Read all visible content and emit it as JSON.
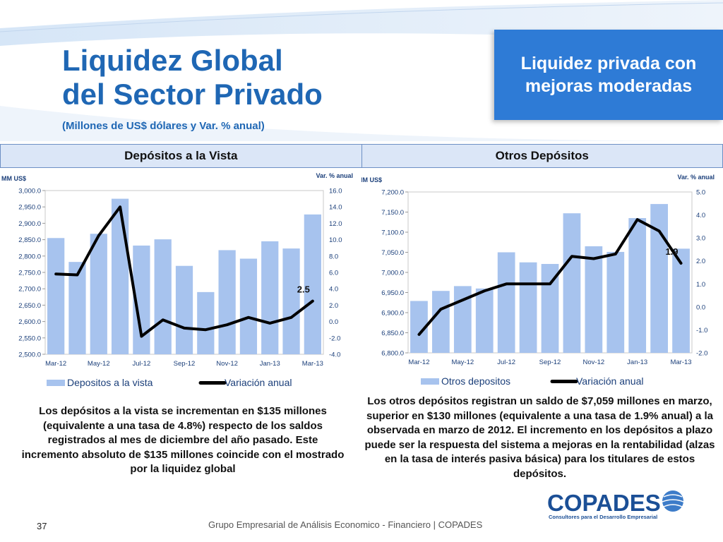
{
  "header": {
    "title_line1": "Liquidez Global",
    "title_line2": "del Sector Privado",
    "subtitle": "(Millones de US$ dólares  y Var. % anual)",
    "callout": "Liquidez privada con mejoras moderadas"
  },
  "sections": [
    {
      "label": "Depósitos a la Vista"
    },
    {
      "label": "Otros Depósitos"
    }
  ],
  "chart_data": [
    {
      "type": "bar",
      "title": "Depósitos a la Vista",
      "categories": [
        "Mar-12",
        "Apr-12",
        "May-12",
        "Jun-12",
        "Jul-12",
        "Aug-12",
        "Sep-12",
        "Oct-12",
        "Nov-12",
        "Dec-12",
        "Jan-13",
        "Feb-13",
        "Mar-13"
      ],
      "x_tick_labels": [
        "Mar-12",
        "May-12",
        "Jul-12",
        "Sep-12",
        "Nov-12",
        "Jan-13",
        "Mar-13"
      ],
      "ylabel_left": "MM US$",
      "ylabel_right": "Var. % anual",
      "ylim_left": [
        2500,
        3000
      ],
      "ylim_right": [
        -4,
        16
      ],
      "y_ticks_left": [
        "3,000.0",
        "2,950.0",
        "2,900.0",
        "2,850.0",
        "2,800.0",
        "2,750.0",
        "2,700.0",
        "2,650.0",
        "2,600.0",
        "2,550.0",
        "2,500.0"
      ],
      "y_ticks_right": [
        "16.0",
        "14.0",
        "12.0",
        "10.0",
        "8.0",
        "6.0",
        "4.0",
        "2.0",
        "0.0",
        "-2.0",
        "-4.0"
      ],
      "series": [
        {
          "name": "Depositos a la vista",
          "type": "bar",
          "axis": "left",
          "color": "#a7c3ee",
          "values": [
            2855,
            2782,
            2868,
            2975,
            2832,
            2851,
            2770,
            2690,
            2818,
            2792,
            2845,
            2823,
            2927
          ]
        },
        {
          "name": "Variación anual",
          "type": "line",
          "axis": "right",
          "color": "#000000",
          "values": [
            5.8,
            5.7,
            10.5,
            14.0,
            -1.8,
            0.2,
            -0.8,
            -1.0,
            -0.4,
            0.5,
            -0.2,
            0.5,
            2.5
          ]
        }
      ],
      "data_label": "2.5",
      "legend": "bottom"
    },
    {
      "type": "bar",
      "title": "Otros Depósitos",
      "categories": [
        "Mar-12",
        "Apr-12",
        "May-12",
        "Jun-12",
        "Jul-12",
        "Aug-12",
        "Sep-12",
        "Oct-12",
        "Nov-12",
        "Dec-12",
        "Jan-13",
        "Feb-13",
        "Mar-13"
      ],
      "x_tick_labels": [
        "Mar-12",
        "May-12",
        "Jul-12",
        "Sep-12",
        "Nov-12",
        "Jan-13",
        "Mar-13"
      ],
      "ylabel_left": "MM US$",
      "ylabel_right": "Var. % anual",
      "ylim_left": [
        6800,
        7200
      ],
      "ylim_right": [
        -2,
        5
      ],
      "y_ticks_left": [
        "7,200.0",
        "7,150.0",
        "7,100.0",
        "7,050.0",
        "7,000.0",
        "6,950.0",
        "6,900.0",
        "6,850.0",
        "6,800.0"
      ],
      "y_ticks_right": [
        "5.0",
        "4.0",
        "3.0",
        "2.0",
        "1.0",
        "0.0",
        "-1.0",
        "-2.0"
      ],
      "series": [
        {
          "name": "Otros depositos",
          "type": "bar",
          "axis": "left",
          "color": "#a7c3ee",
          "values": [
            6929,
            6954,
            6966,
            6960,
            7050,
            7025,
            7021,
            7147,
            7065,
            7051,
            7135,
            7170,
            7059
          ]
        },
        {
          "name": "Variación anual",
          "type": "line",
          "axis": "right",
          "color": "#000000",
          "values": [
            -1.2,
            -0.1,
            0.3,
            0.7,
            1.0,
            1.0,
            1.0,
            2.2,
            2.1,
            2.3,
            3.8,
            3.3,
            1.9
          ]
        }
      ],
      "data_label": "1.9",
      "legend": "bottom"
    }
  ],
  "descriptions": {
    "left": "Los depósitos a la vista se incrementan en $135 millones (equivalente a una tasa de 4.8%) respecto de los saldos registrados al mes de diciembre del año pasado. Este incremento absoluto de $135 millones coincide con el mostrado por la liquidez global",
    "right": "Los otros depósitos registran un saldo de $7,059 millones en marzo, superior en $130 millones  (equivalente a una tasa de 1.9% anual) a la observada en marzo de 2012. El incremento en los depósitos a plazo puede ser la respuesta del sistema a mejoras en la rentabilidad (alzas en la tasa de interés pasiva básica) para los titulares de estos depósitos."
  },
  "footer": {
    "page_number": "37",
    "text": "Grupo Empresarial de Análisis Economico - Financiero | COPADES"
  },
  "logo": {
    "name": "COPADES",
    "tagline": "Consultores para el Desarrollo Empresarial"
  }
}
